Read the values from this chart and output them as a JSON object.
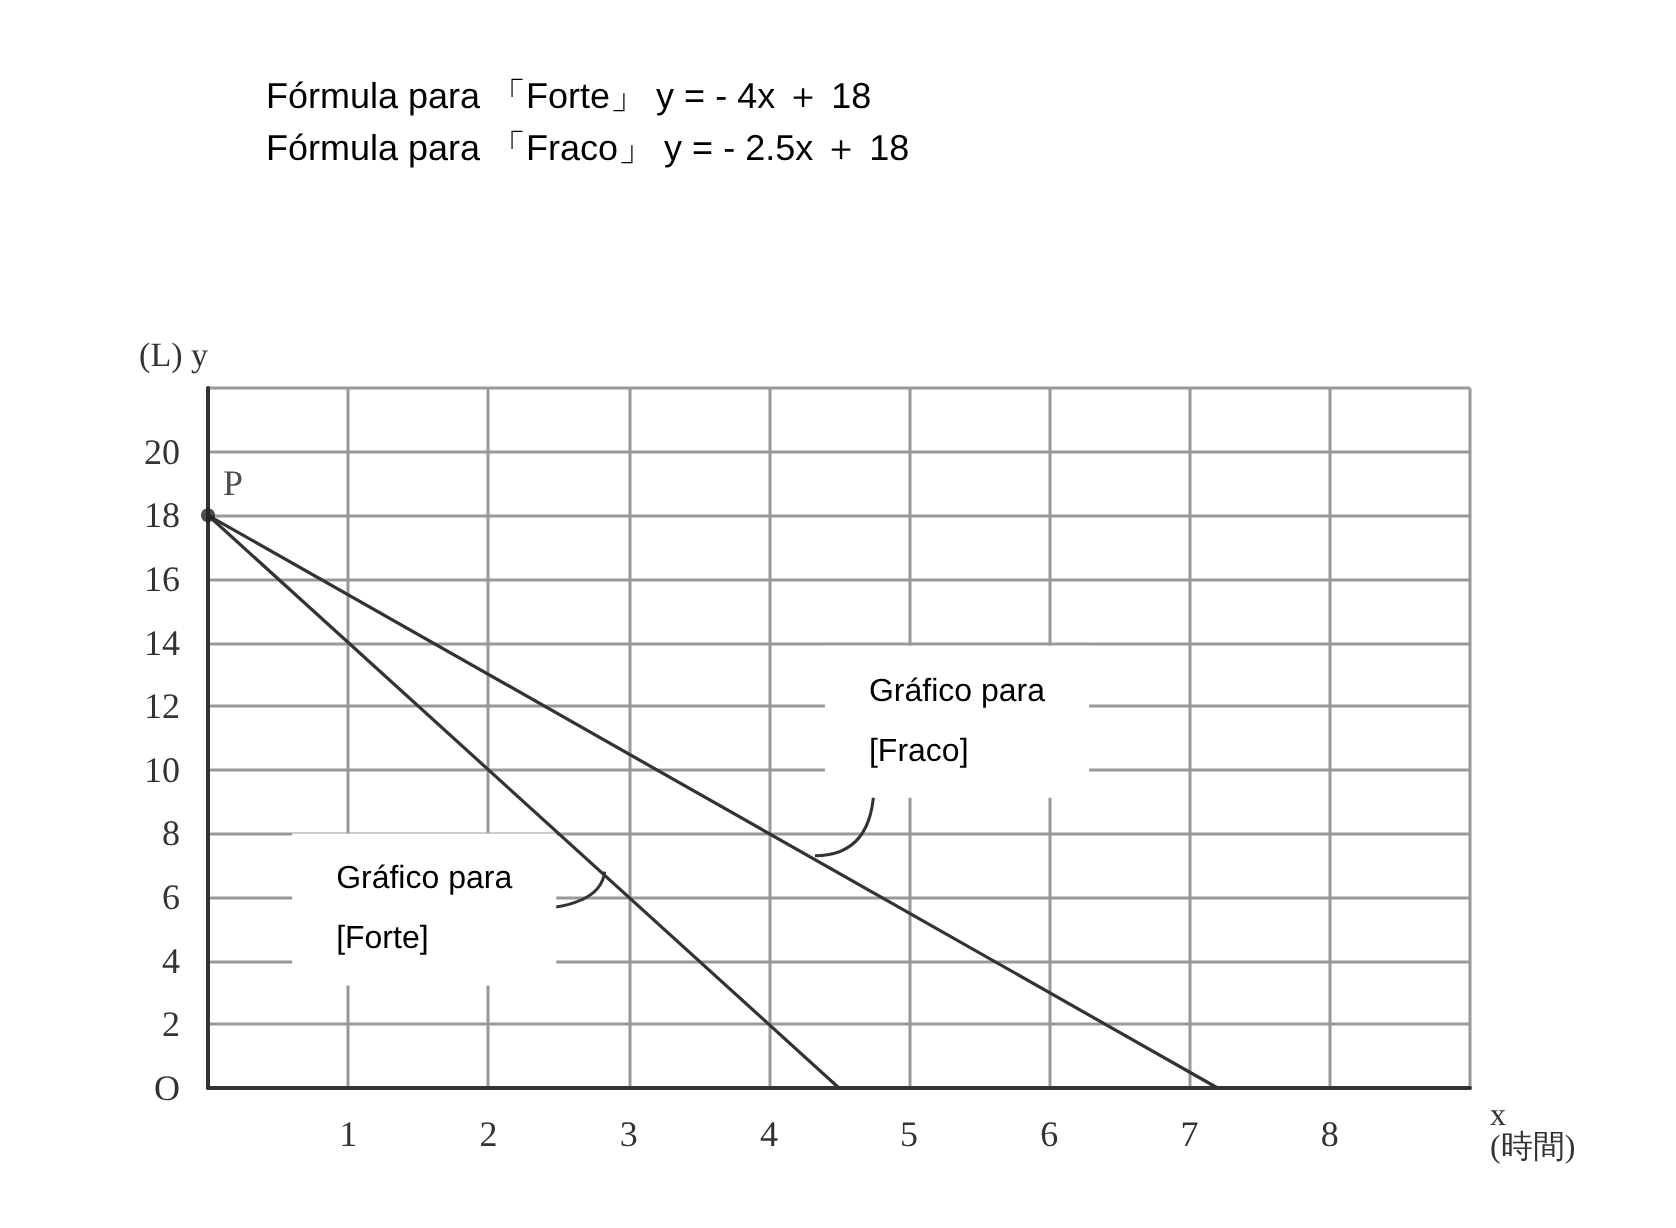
{
  "chart_data": {
    "type": "line",
    "title": "Fórmula para 「Forte」 y = - 4x ＋ 18",
    "subtitle": "Fórmula para 「Fraco」 y = - 2.5x ＋ 18",
    "xlabel": "x\n(時間)",
    "ylabel": "(L) y",
    "xlim": [
      0,
      9
    ],
    "xticks": [
      {
        "value": 0,
        "label": null
      },
      1,
      2,
      3,
      4,
      5,
      6,
      7,
      8,
      {
        "value": 9,
        "label": null
      }
    ],
    "ylim": [
      0,
      22
    ],
    "yticks": [
      {
        "value": 0,
        "label": "O"
      },
      2,
      4,
      6,
      8,
      10,
      12,
      14,
      16,
      18,
      20,
      {
        "value": 22,
        "label": null
      }
    ],
    "grid": true,
    "marker": "none",
    "line_style": "solid",
    "series": [
      {
        "color": "#333333",
        "x": [
          0,
          4.5
        ],
        "values": [
          18,
          0
        ]
      },
      {
        "color": "#333333",
        "x": [
          0,
          7.2
        ],
        "values": [
          18,
          0
        ]
      },
      {
        "type": "scatter",
        "marker": "circle",
        "color": "#222222",
        "x": [
          0
        ],
        "values": [
          18
        ],
        "value_labels": [
          "P"
        ]
      }
    ],
    "annotations": [
      {
        "text": "Gráfico para\n[Forte]",
        "x": 2.8,
        "y": 6.8
      },
      {
        "text": "Gráfico para\n[Fraco]",
        "x": 4.3,
        "y": 7.3
      }
    ]
  }
}
